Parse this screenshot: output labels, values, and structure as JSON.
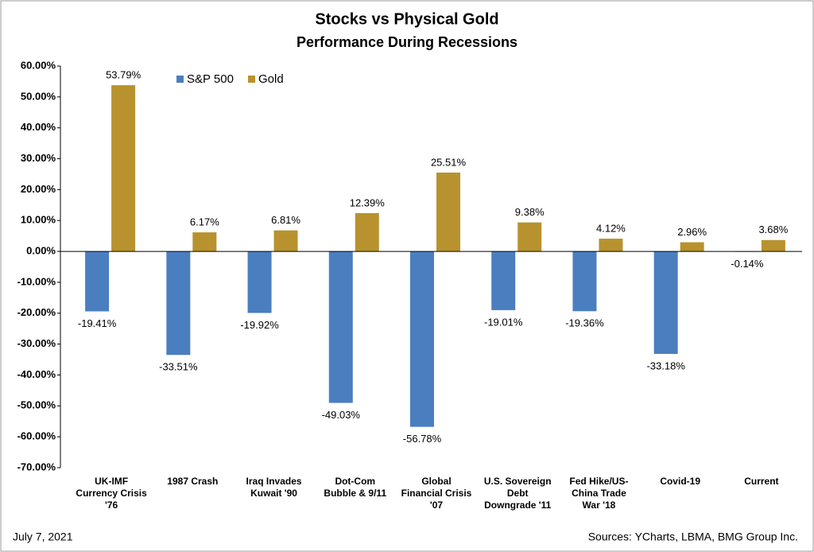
{
  "chart_data": {
    "type": "bar",
    "title": "Stocks vs Physical Gold",
    "subtitle": "Performance During Recessions",
    "categories": [
      "UK-IMF\nCurrency Crisis\n'76",
      "1987 Crash",
      "Iraq Invades\nKuwait '90",
      "Dot-Com\nBubble & 9/11",
      "Global\nFinancial Crisis\n'07",
      "U.S. Sovereign\nDebt\nDowngrade '11",
      "Fed Hike/US-\nChina Trade\nWar '18",
      "Covid-19",
      "Current"
    ],
    "series": [
      {
        "name": "S&P 500",
        "color": "#4a7ebf",
        "values": [
          -19.41,
          -33.51,
          -19.92,
          -49.03,
          -56.78,
          -19.01,
          -19.36,
          -33.18,
          -0.14
        ],
        "value_labels": [
          "-19.41%",
          "-33.51%",
          "-19.92%",
          "-49.03%",
          "-56.78%",
          "-19.01%",
          "-19.36%",
          "-33.18%",
          "-0.14%"
        ]
      },
      {
        "name": "Gold",
        "color": "#b8922e",
        "values": [
          53.79,
          6.17,
          6.81,
          12.39,
          25.51,
          9.38,
          4.12,
          2.96,
          3.68
        ],
        "value_labels": [
          "53.79%",
          "6.17%",
          "6.81%",
          "12.39%",
          "25.51%",
          "9.38%",
          "4.12%",
          "2.96%",
          "3.68%"
        ]
      }
    ],
    "ylim": [
      -70,
      60
    ],
    "yticks": [
      {
        "value": 60,
        "label": "60.00%"
      },
      {
        "value": 50,
        "label": "50.00%"
      },
      {
        "value": 40,
        "label": "40.00%"
      },
      {
        "value": 30,
        "label": "30.00%"
      },
      {
        "value": 20,
        "label": "20.00%"
      },
      {
        "value": 10,
        "label": "10.00%"
      },
      {
        "value": 0,
        "label": "0.00%"
      },
      {
        "value": -10,
        "label": "-10.00%"
      },
      {
        "value": -20,
        "label": "-20.00%"
      },
      {
        "value": -30,
        "label": "-30.00%"
      },
      {
        "value": -40,
        "label": "-40.00%"
      },
      {
        "value": -50,
        "label": "-50.00%"
      },
      {
        "value": -60,
        "label": "-60.00%"
      },
      {
        "value": -70,
        "label": "-70.00%"
      }
    ],
    "legend": "top-left",
    "date": "July 7, 2021",
    "source": "Sources: YCharts, LBMA, BMG Group Inc."
  }
}
